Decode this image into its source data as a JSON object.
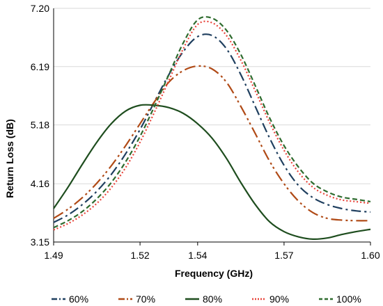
{
  "chart_data": {
    "type": "line",
    "title": "",
    "xlabel": "Frequency (GHz)",
    "ylabel": "Return Loss (dB)",
    "xlim": [
      1.49,
      1.6
    ],
    "ylim": [
      3.15,
      7.2
    ],
    "x_ticks": [
      1.49,
      1.52,
      1.54,
      1.57,
      1.6
    ],
    "x_tick_labels": [
      "1.49",
      "1.52",
      "1.54",
      "1.57",
      "1.60"
    ],
    "y_ticks": [
      3.15,
      4.16,
      5.18,
      6.19,
      7.2
    ],
    "y_tick_labels": [
      "3.15",
      "4.16",
      "5.18",
      "6.19",
      "7.20"
    ],
    "grid": "horizontal",
    "legend_position": "bottom",
    "x": [
      1.49,
      1.495,
      1.5,
      1.505,
      1.51,
      1.515,
      1.52,
      1.525,
      1.53,
      1.535,
      1.54,
      1.545,
      1.55,
      1.555,
      1.56,
      1.565,
      1.57,
      1.575,
      1.58,
      1.585,
      1.59,
      1.595,
      1.6
    ],
    "series": [
      {
        "name": "60%",
        "color": "#1f3f5f",
        "dash": "dash-dot",
        "values": [
          3.49,
          3.62,
          3.8,
          4.03,
          4.32,
          4.68,
          5.1,
          5.58,
          6.05,
          6.45,
          6.71,
          6.73,
          6.5,
          6.05,
          5.5,
          4.95,
          4.48,
          4.13,
          3.92,
          3.8,
          3.73,
          3.69,
          3.67
        ]
      },
      {
        "name": "70%",
        "color": "#b04a16",
        "dash": "long-dash-dot-dot",
        "values": [
          3.56,
          3.72,
          3.92,
          4.17,
          4.47,
          4.82,
          5.2,
          5.58,
          5.92,
          6.12,
          6.2,
          6.15,
          5.92,
          5.5,
          5.03,
          4.55,
          4.16,
          3.86,
          3.66,
          3.56,
          3.53,
          3.52,
          3.52
        ]
      },
      {
        "name": "80%",
        "color": "#1e4d1e",
        "dash": "solid",
        "values": [
          3.73,
          4.1,
          4.5,
          4.88,
          5.2,
          5.42,
          5.52,
          5.52,
          5.48,
          5.38,
          5.2,
          4.95,
          4.6,
          4.18,
          3.8,
          3.5,
          3.33,
          3.24,
          3.2,
          3.22,
          3.28,
          3.33,
          3.37
        ]
      },
      {
        "name": "90%",
        "color": "#e8443a",
        "dash": "dotted",
        "values": [
          3.36,
          3.47,
          3.62,
          3.82,
          4.09,
          4.44,
          4.88,
          5.4,
          5.95,
          6.5,
          6.92,
          6.95,
          6.73,
          6.3,
          5.77,
          5.22,
          4.74,
          4.36,
          4.1,
          3.96,
          3.88,
          3.85,
          3.82
        ]
      },
      {
        "name": "100%",
        "color": "#2e6b2e",
        "dash": "dashed",
        "values": [
          3.4,
          3.52,
          3.68,
          3.9,
          4.18,
          4.54,
          4.98,
          5.5,
          6.05,
          6.6,
          7.0,
          7.03,
          6.82,
          6.4,
          5.86,
          5.3,
          4.82,
          4.45,
          4.17,
          4.02,
          3.93,
          3.89,
          3.85
        ]
      }
    ]
  }
}
